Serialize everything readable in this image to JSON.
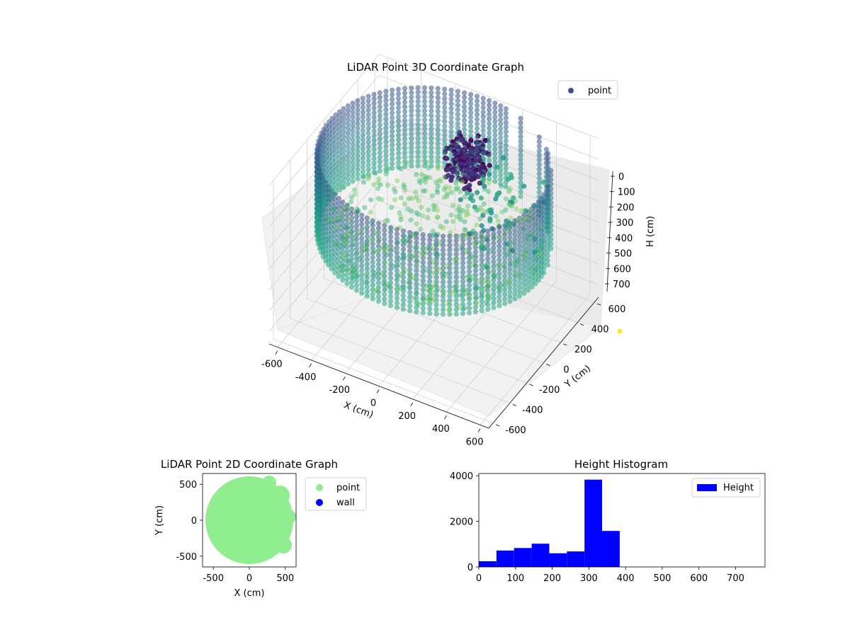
{
  "chart_data": [
    {
      "type": "scatter",
      "title": "LiDAR Point 3D Coordinate Graph",
      "xlabel": "X (cm)",
      "ylabel": "Y (cm)",
      "zlabel": "H (cm)",
      "xlim": [
        -650,
        650
      ],
      "ylim": [
        -650,
        650
      ],
      "zlim": [
        760,
        0
      ],
      "xticks": [
        "-600",
        "-400",
        "-200",
        "0",
        "200",
        "400",
        "600"
      ],
      "yticks": [
        "-600",
        "-400",
        "-200",
        "0",
        "200",
        "400",
        "600"
      ],
      "zticks": [
        "0",
        "100",
        "200",
        "300",
        "400",
        "500",
        "600",
        "700"
      ],
      "legend": {
        "location": "top-right",
        "entries": [
          {
            "label": "point",
            "color": "#3b528b"
          }
        ]
      },
      "colormap": "viridis",
      "description": "wall ring of points at radius ~620 cm spanning heights 0–380 cm, dense floor disk, dark cluster near center-right",
      "grid": true
    },
    {
      "type": "scatter",
      "title": "LiDAR Point 2D Coordinate Graph",
      "xlabel": "X (cm)",
      "ylabel": "Y (cm)",
      "xlim": [
        -650,
        650
      ],
      "ylim": [
        -650,
        650
      ],
      "xticks": [
        "-500",
        "0",
        "500"
      ],
      "yticks": [
        "500",
        "0",
        "-500"
      ],
      "series": [
        {
          "name": "point",
          "color": "#90ee90"
        },
        {
          "name": "wall",
          "color": "#0000ff"
        }
      ],
      "legend": {
        "location": "outside-right"
      }
    },
    {
      "type": "bar",
      "title": "Height Histogram",
      "xlim": [
        0,
        780
      ],
      "ylim": [
        0,
        4100
      ],
      "xticks": [
        "0",
        "100",
        "200",
        "300",
        "400",
        "500",
        "600",
        "700"
      ],
      "yticks": [
        "0",
        "2000",
        "4000"
      ],
      "bin_edges": [
        0,
        48,
        96,
        144,
        192,
        240,
        288,
        336,
        384
      ],
      "counts": [
        250,
        720,
        830,
        1020,
        600,
        680,
        3830,
        1580
      ],
      "series": [
        {
          "name": "Height",
          "color": "#0000ff"
        }
      ],
      "legend": {
        "location": "top-right"
      }
    }
  ]
}
